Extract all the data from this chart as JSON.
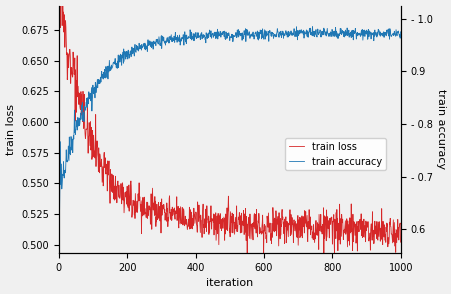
{
  "xlabel": "iteration",
  "ylabel_left": "train loss",
  "ylabel_right": "train accuracy",
  "legend_labels": [
    "train loss",
    "train accuracy"
  ],
  "xlim": [
    0,
    1000
  ],
  "ylim_left": [
    0.493,
    0.695
  ],
  "ylim_right": [
    0.555,
    1.025
  ],
  "yticks_left": [
    0.5,
    0.525,
    0.55,
    0.575,
    0.6,
    0.625,
    0.65,
    0.675
  ],
  "yticks_right": [
    0.6,
    0.7,
    0.8,
    0.9,
    1.0
  ],
  "xticks": [
    0,
    200,
    400,
    600,
    800,
    1000
  ],
  "loss_color": "#d62728",
  "acc_color": "#1f77b4",
  "n_points": 1000,
  "figsize": [
    4.52,
    2.94
  ],
  "dpi": 100
}
